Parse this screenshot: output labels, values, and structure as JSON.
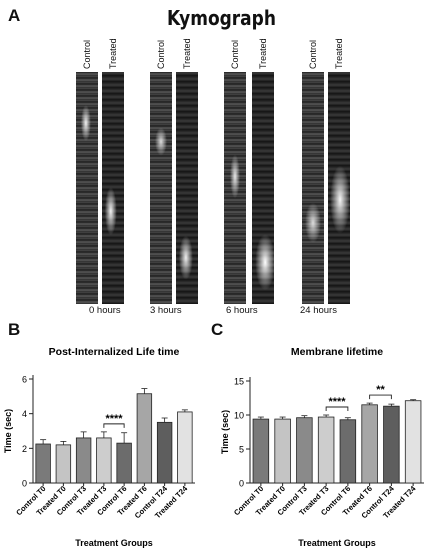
{
  "panels": {
    "a": "A",
    "b": "B",
    "c": "C"
  },
  "kymograph": {
    "title": "Kymograph",
    "lane_labels": [
      "Control",
      "Treated"
    ],
    "timepoints": [
      "0 hours",
      "3 hours",
      "6 hours",
      "24 hours"
    ]
  },
  "colors": {
    "control_t0": "#7a7a7a",
    "treated_t0": "#c4c4c4",
    "control_t3": "#8a8a8a",
    "treated_t3": "#cdcdcd",
    "control_t6": "#6c6c6c",
    "treated_t6": "#a6a6a6",
    "control_t24": "#5e5e5e",
    "treated_t24": "#e2e2e2"
  },
  "chart_data": [
    {
      "type": "bar",
      "title": "Post-Internalized Life time",
      "xlabel": "Treatment Groups",
      "ylabel": "Time (sec)",
      "ylim": [
        0,
        6
      ],
      "yticks": [
        0,
        2,
        4,
        6
      ],
      "categories": [
        "Control T0",
        "Treated T0",
        "Control T3",
        "Treated T3",
        "Control T6",
        "Treated T6",
        "Control T24",
        "Treated T24"
      ],
      "values": [
        2.25,
        2.2,
        2.6,
        2.6,
        2.3,
        5.15,
        3.5,
        4.1
      ],
      "errors": [
        0.25,
        0.2,
        0.35,
        0.35,
        0.6,
        0.3,
        0.25,
        0.12
      ],
      "significance": [
        {
          "from": 3,
          "to": 4,
          "label": "****"
        }
      ]
    },
    {
      "type": "bar",
      "title": "Membrane lifetime",
      "xlabel": "Treatment Groups",
      "ylabel": "Time (sec)",
      "ylim": [
        0,
        15
      ],
      "yticks": [
        0,
        5,
        10,
        15
      ],
      "categories": [
        "Control T0",
        "Treated T0",
        "Control T3",
        "Treated T3",
        "Control T6",
        "Treated T6",
        "Control T24",
        "Treated T24"
      ],
      "values": [
        9.4,
        9.4,
        9.6,
        9.7,
        9.3,
        11.5,
        11.3,
        12.1
      ],
      "errors": [
        0.3,
        0.3,
        0.3,
        0.3,
        0.3,
        0.25,
        0.3,
        0.15
      ],
      "significance": [
        {
          "from": 3,
          "to": 4,
          "label": "****"
        },
        {
          "from": 5,
          "to": 6,
          "label": "**"
        }
      ]
    }
  ]
}
